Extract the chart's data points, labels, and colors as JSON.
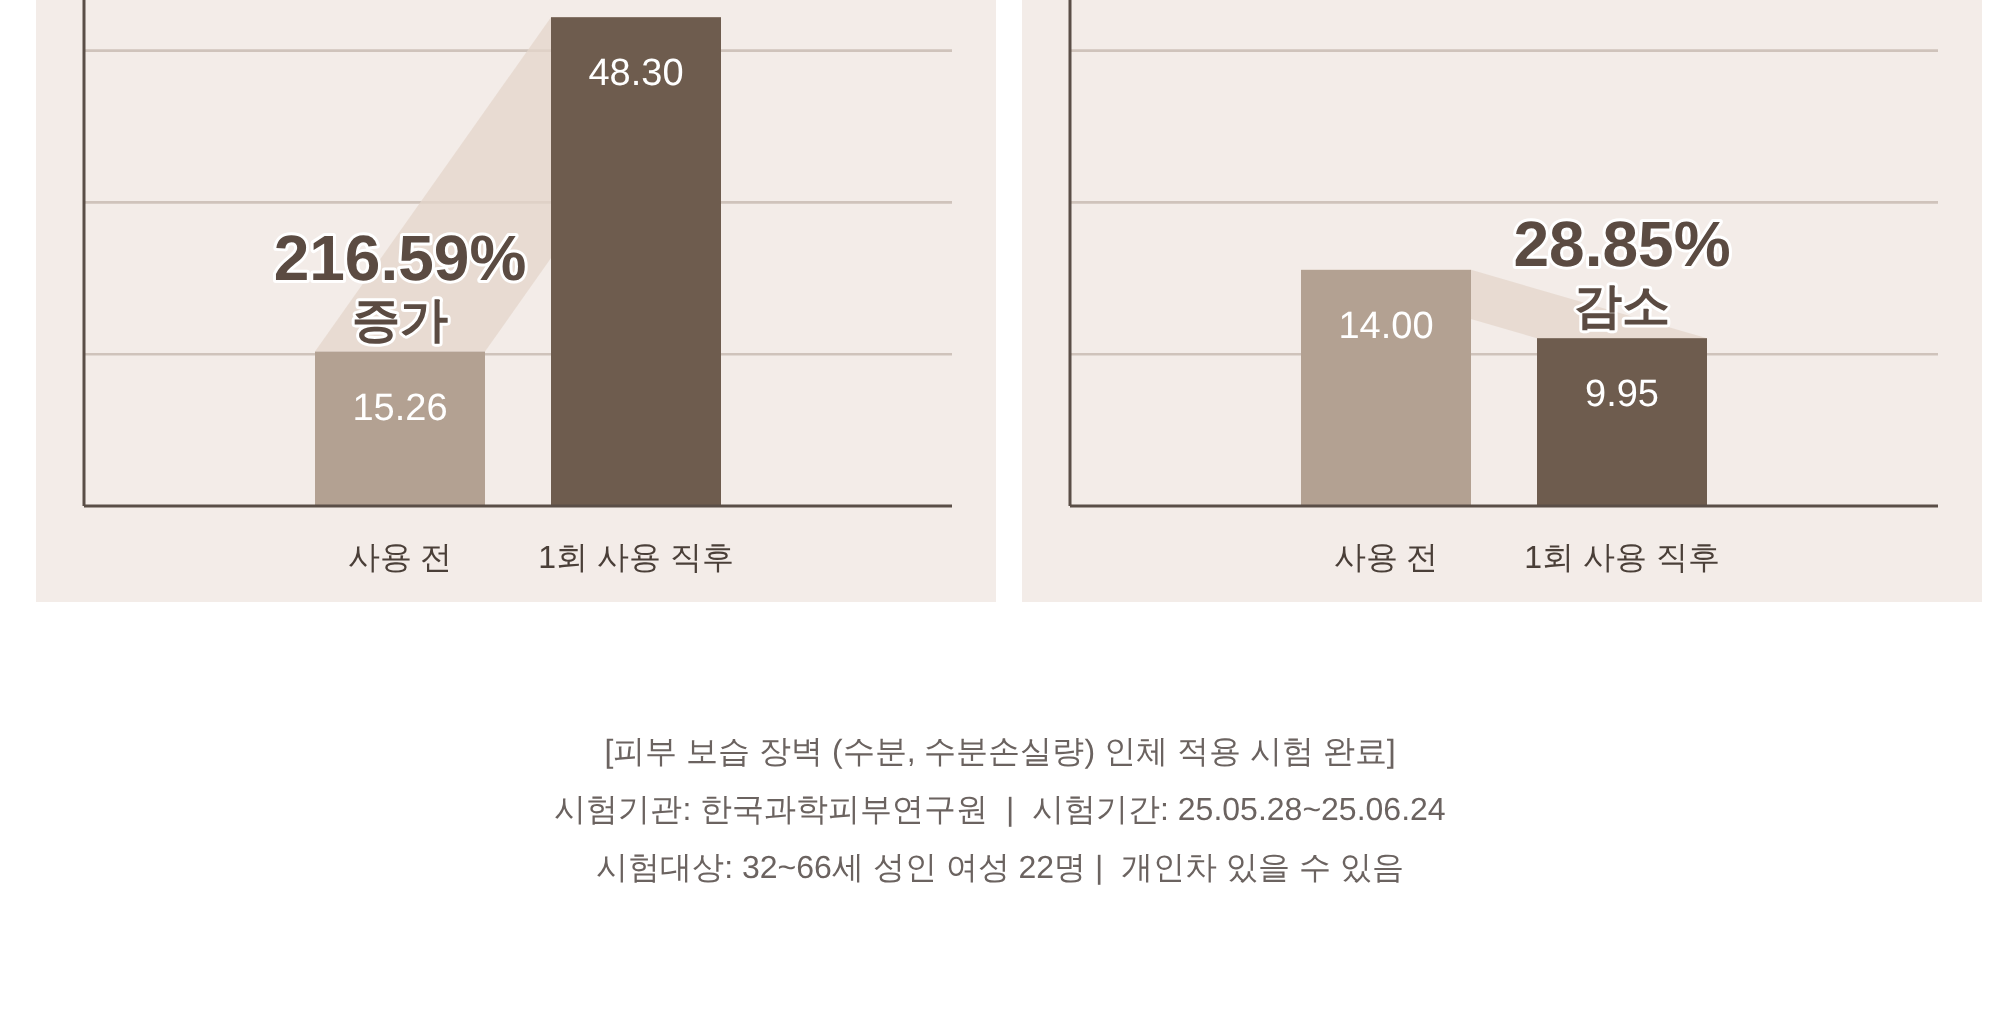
{
  "chart_data": [
    {
      "type": "bar",
      "categories": [
        "사용 전",
        "1회 사용 직후"
      ],
      "values": [
        15.26,
        48.3
      ],
      "colors": [
        "#b3a192",
        "#6e5c4e"
      ],
      "value_labels": [
        "15.26",
        "48.30"
      ],
      "ylim": [
        0,
        50
      ],
      "yticks": [
        15,
        30,
        45
      ],
      "tick_labels": "x",
      "grid": "y",
      "annotations": [
        {
          "text": "216.59%\n증가",
          "x": "사용 전",
          "y": 15.26
        }
      ]
    },
    {
      "type": "bar",
      "categories": [
        "사용 전",
        "1회 사용 직후"
      ],
      "values": [
        14.0,
        9.95
      ],
      "colors": [
        "#b3a192",
        "#6e5c4e"
      ],
      "value_labels": [
        "14.00",
        "9.95"
      ],
      "ylim": [
        0,
        30
      ],
      "yticks": [
        9,
        18,
        27
      ],
      "tick_labels": "x",
      "grid": "y",
      "annotations": [
        {
          "text": "28.85%\n감소",
          "x": "1회 사용 직후",
          "y": 9.95
        }
      ]
    },
    {
      "type": "other",
      "annotations": [
        "[피부 보습 장벽 (수분, 수분손실량) 인체 적용 시험 완료]",
        "시험기관: 한국과학피부연구원  |  시험기간: 25.05.28~25.06.24",
        "시험대상: 32~66세 성인 여성 22명 |  개인차 있을 수 있음"
      ]
    }
  ]
}
